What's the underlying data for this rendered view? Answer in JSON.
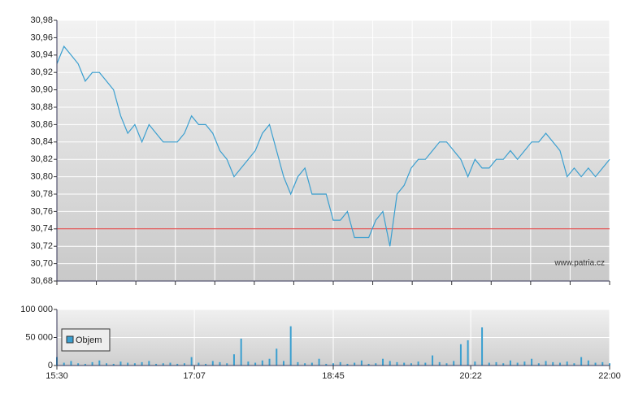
{
  "chart_data": [
    {
      "type": "line",
      "color": "#3a9fd0",
      "watermark": "www.patria.cz",
      "ref_line": 30.74,
      "ref_color": "#e03030",
      "x": [
        "15:30",
        "15:35",
        "15:40",
        "15:45",
        "15:50",
        "15:55",
        "16:00",
        "16:05",
        "16:10",
        "16:15",
        "16:20",
        "16:25",
        "16:30",
        "16:35",
        "16:40",
        "16:45",
        "16:50",
        "16:55",
        "17:00",
        "17:05",
        "17:10",
        "17:15",
        "17:20",
        "17:25",
        "17:30",
        "17:35",
        "17:40",
        "17:45",
        "17:50",
        "17:55",
        "18:00",
        "18:05",
        "18:10",
        "18:15",
        "18:20",
        "18:25",
        "18:30",
        "18:35",
        "18:40",
        "18:45",
        "18:50",
        "18:55",
        "19:00",
        "19:05",
        "19:10",
        "19:15",
        "19:20",
        "19:25",
        "19:30",
        "19:35",
        "19:40",
        "19:45",
        "19:50",
        "19:55",
        "20:00",
        "20:05",
        "20:10",
        "20:15",
        "20:20",
        "20:25",
        "20:30",
        "20:35",
        "20:40",
        "20:45",
        "20:50",
        "20:55",
        "21:00",
        "21:05",
        "21:10",
        "21:15",
        "21:20",
        "21:25",
        "21:30",
        "21:35",
        "21:40",
        "21:45",
        "21:50",
        "21:55",
        "22:00"
      ],
      "values": [
        30.93,
        30.95,
        30.94,
        30.93,
        30.91,
        30.92,
        30.92,
        30.91,
        30.9,
        30.87,
        30.85,
        30.86,
        30.84,
        30.86,
        30.85,
        30.84,
        30.84,
        30.84,
        30.85,
        30.87,
        30.86,
        30.86,
        30.85,
        30.83,
        30.82,
        30.8,
        30.81,
        30.82,
        30.83,
        30.85,
        30.86,
        30.83,
        30.8,
        30.78,
        30.8,
        30.81,
        30.78,
        30.78,
        30.78,
        30.75,
        30.75,
        30.76,
        30.73,
        30.73,
        30.73,
        30.75,
        30.76,
        30.72,
        30.78,
        30.79,
        30.81,
        30.82,
        30.82,
        30.83,
        30.84,
        30.84,
        30.83,
        30.82,
        30.8,
        30.82,
        30.81,
        30.81,
        30.82,
        30.82,
        30.83,
        30.82,
        30.83,
        30.84,
        30.84,
        30.85,
        30.84,
        30.83,
        30.8,
        30.81,
        30.8,
        30.81,
        30.8,
        30.81,
        30.82
      ],
      "xlim": [
        "15:30",
        "22:00"
      ],
      "ylim": [
        30.68,
        30.98
      ],
      "yticks": [
        {
          "value": 30.68,
          "label": "30,68"
        },
        {
          "value": 30.7,
          "label": "30,70"
        },
        {
          "value": 30.72,
          "label": "30,72"
        },
        {
          "value": 30.74,
          "label": "30,74"
        },
        {
          "value": 30.76,
          "label": "30,76"
        },
        {
          "value": 30.78,
          "label": "30,78"
        },
        {
          "value": 30.8,
          "label": "30,80"
        },
        {
          "value": 30.82,
          "label": "30,82"
        },
        {
          "value": 30.84,
          "label": "30,84"
        },
        {
          "value": 30.86,
          "label": "30,86"
        },
        {
          "value": 30.88,
          "label": "30,88"
        },
        {
          "value": 30.9,
          "label": "30,90"
        },
        {
          "value": 30.92,
          "label": "30,92"
        },
        {
          "value": 30.94,
          "label": "30,94"
        },
        {
          "value": 30.96,
          "label": "30,96"
        },
        {
          "value": 30.98,
          "label": "30,98"
        }
      ],
      "grid": true
    },
    {
      "type": "bar",
      "x": [
        "15:30",
        "15:35",
        "15:40",
        "15:45",
        "15:50",
        "15:55",
        "16:00",
        "16:05",
        "16:10",
        "16:15",
        "16:20",
        "16:25",
        "16:30",
        "16:35",
        "16:40",
        "16:45",
        "16:50",
        "16:55",
        "17:00",
        "17:05",
        "17:10",
        "17:15",
        "17:20",
        "17:25",
        "17:30",
        "17:35",
        "17:40",
        "17:45",
        "17:50",
        "17:55",
        "18:00",
        "18:05",
        "18:10",
        "18:15",
        "18:20",
        "18:25",
        "18:30",
        "18:35",
        "18:40",
        "18:45",
        "18:50",
        "18:55",
        "19:00",
        "19:05",
        "19:10",
        "19:15",
        "19:20",
        "19:25",
        "19:30",
        "19:35",
        "19:40",
        "19:45",
        "19:50",
        "19:55",
        "20:00",
        "20:05",
        "20:10",
        "20:15",
        "20:20",
        "20:25",
        "20:30",
        "20:35",
        "20:40",
        "20:45",
        "20:50",
        "20:55",
        "21:00",
        "21:05",
        "21:10",
        "21:15",
        "21:20",
        "21:25",
        "21:30",
        "21:35",
        "21:40",
        "21:45",
        "21:50",
        "21:55",
        "22:00"
      ],
      "series": [
        {
          "name": "Objem",
          "color": "#3a9fd0",
          "values": [
            15000,
            5000,
            8000,
            4000,
            3000,
            6000,
            9000,
            4000,
            3000,
            7000,
            5000,
            4000,
            6000,
            8000,
            3000,
            4000,
            5000,
            3000,
            4000,
            15000,
            5000,
            3000,
            8000,
            6000,
            4000,
            20000,
            48000,
            7000,
            5000,
            9000,
            12000,
            30000,
            8000,
            70000,
            6000,
            4000,
            5000,
            12000,
            3000,
            4000,
            6000,
            3000,
            5000,
            9000,
            3000,
            4000,
            12000,
            8000,
            6000,
            5000,
            4000,
            7000,
            5000,
            18000,
            6000,
            4000,
            8000,
            38000,
            45000,
            7000,
            68000,
            5000,
            6000,
            4000,
            9000,
            5000,
            7000,
            12000,
            4000,
            8000,
            6000,
            5000,
            7000,
            4000,
            15000,
            9000,
            5000,
            6000,
            4000
          ]
        }
      ],
      "xlim": [
        "15:30",
        "22:00"
      ],
      "xticks": [
        "15:30",
        "17:07",
        "18:45",
        "20:22",
        "22:00"
      ],
      "ylim": [
        0,
        100000
      ],
      "yticks": [
        0,
        {
          "value": 50000,
          "label": "50 000"
        },
        {
          "value": 100000,
          "label": "100 000"
        }
      ],
      "grid": true
    }
  ]
}
